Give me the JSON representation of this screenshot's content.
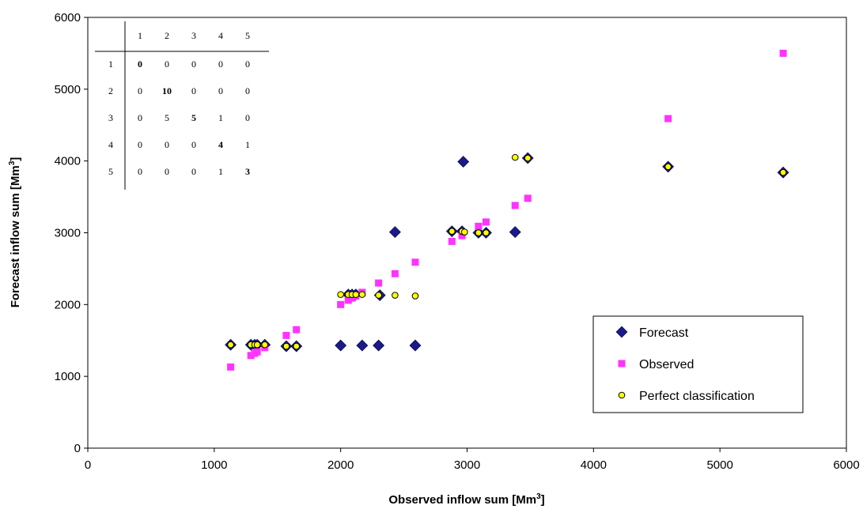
{
  "chart_data": {
    "type": "scatter",
    "xlabel": "Observed inflow sum [Mm",
    "ylabel": "Forecast inflow sum [Mm",
    "unit_superscript": "3",
    "unit_close": "]",
    "xlim": [
      0,
      6000
    ],
    "ylim": [
      0,
      6000
    ],
    "x_ticks": [
      "0",
      "1000",
      "2000",
      "3000",
      "4000",
      "5000",
      "6000"
    ],
    "y_ticks": [
      "0",
      "1000",
      "2000",
      "3000",
      "4000",
      "5000",
      "6000"
    ],
    "grid": false,
    "legend_position": "bottom-right",
    "series": [
      {
        "name": "Forecast",
        "marker": "diamond",
        "color": "#1a1a8c",
        "points": [
          [
            1130,
            1440
          ],
          [
            1290,
            1440
          ],
          [
            1320,
            1440
          ],
          [
            1340,
            1440
          ],
          [
            1400,
            1440
          ],
          [
            1570,
            1420
          ],
          [
            1650,
            1420
          ],
          [
            2000,
            1430
          ],
          [
            2170,
            1430
          ],
          [
            2300,
            1430
          ],
          [
            2590,
            1430
          ],
          [
            2060,
            2140
          ],
          [
            2090,
            2140
          ],
          [
            2120,
            2140
          ],
          [
            2310,
            2130
          ],
          [
            2430,
            3010
          ],
          [
            2880,
            3020
          ],
          [
            2960,
            3020
          ],
          [
            3090,
            3000
          ],
          [
            3150,
            3000
          ],
          [
            3380,
            3010
          ],
          [
            2970,
            3990
          ],
          [
            3480,
            4040
          ],
          [
            4590,
            3920
          ],
          [
            5500,
            3840
          ]
        ]
      },
      {
        "name": "Observed",
        "marker": "square",
        "color": "#ff33ff",
        "points": [
          [
            1130,
            1130
          ],
          [
            1290,
            1290
          ],
          [
            1320,
            1320
          ],
          [
            1340,
            1340
          ],
          [
            1400,
            1400
          ],
          [
            1570,
            1570
          ],
          [
            1650,
            1650
          ],
          [
            2000,
            2000
          ],
          [
            2060,
            2060
          ],
          [
            2090,
            2090
          ],
          [
            2120,
            2120
          ],
          [
            2170,
            2170
          ],
          [
            2300,
            2300
          ],
          [
            2430,
            2430
          ],
          [
            2590,
            2590
          ],
          [
            2880,
            2880
          ],
          [
            2960,
            2960
          ],
          [
            3090,
            3090
          ],
          [
            3150,
            3150
          ],
          [
            3380,
            3380
          ],
          [
            3480,
            3480
          ],
          [
            4590,
            4590
          ],
          [
            5500,
            5500
          ]
        ]
      },
      {
        "name": "Perfect classification",
        "marker": "circle",
        "color": "#ffff00",
        "points": [
          [
            1130,
            1440
          ],
          [
            1290,
            1440
          ],
          [
            1320,
            1440
          ],
          [
            1340,
            1440
          ],
          [
            1400,
            1440
          ],
          [
            1570,
            1420
          ],
          [
            1650,
            1420
          ],
          [
            2000,
            2140
          ],
          [
            2060,
            2140
          ],
          [
            2090,
            2140
          ],
          [
            2120,
            2140
          ],
          [
            2170,
            2140
          ],
          [
            2300,
            2130
          ],
          [
            2430,
            2130
          ],
          [
            2590,
            2120
          ],
          [
            2880,
            3020
          ],
          [
            2960,
            3020
          ],
          [
            2980,
            3010
          ],
          [
            3090,
            3000
          ],
          [
            3150,
            3000
          ],
          [
            3380,
            4050
          ],
          [
            3480,
            4040
          ],
          [
            4590,
            3920
          ],
          [
            5500,
            3840
          ]
        ]
      }
    ],
    "confusion_matrix": {
      "column_headers": [
        "1",
        "2",
        "3",
        "4",
        "5"
      ],
      "row_headers": [
        "1",
        "2",
        "3",
        "4",
        "5"
      ],
      "cells": [
        [
          "0",
          "0",
          "0",
          "0",
          "0"
        ],
        [
          "0",
          "10",
          "0",
          "0",
          "0"
        ],
        [
          "0",
          "5",
          "5",
          "1",
          "0"
        ],
        [
          "0",
          "0",
          "0",
          "4",
          "1"
        ],
        [
          "0",
          "0",
          "0",
          "1",
          "3"
        ]
      ]
    }
  }
}
